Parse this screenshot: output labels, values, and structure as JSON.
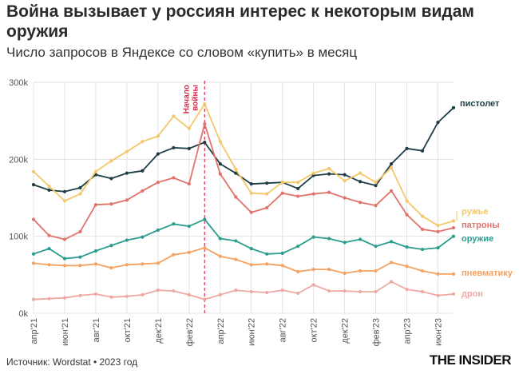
{
  "title": "Война вызывает у россиян интерес к некоторым видам оружия",
  "subtitle": "Число запросов в Яндексе со словом «купить» в месяц",
  "footer": {
    "source": "Источник: Wordstat • 2023 год",
    "logo": "THE INSIDER"
  },
  "colors": {
    "пистолет": "#1f3d47",
    "ружье": "#f3c86a",
    "патроны": "#e0736b",
    "оружие": "#2a9d8f",
    "пневматику": "#f4a261",
    "дрон": "#efa9a4",
    "annotation": "#d62e4e",
    "grid": "#e3e3e3"
  },
  "chart_data": {
    "type": "line",
    "title": "Война вызывает у россиян интерес к некоторым видам оружия",
    "subtitle": "Число запросов в Яндексе со словом «купить» в месяц",
    "x": [
      "апр'21",
      "май'21",
      "июн'21",
      "июл'21",
      "авг'21",
      "сен'21",
      "окт'21",
      "ноя'21",
      "дек'21",
      "янв'22",
      "фев'22",
      "мар'22",
      "апр'22",
      "май'22",
      "июн'22",
      "июл'22",
      "авг'22",
      "сен'22",
      "окт'22",
      "ноя'22",
      "дек'22",
      "янв'23",
      "фев'23",
      "мар'23",
      "апр'23",
      "май'23",
      "июн'23",
      "июл'23"
    ],
    "x_tick_labels": [
      "апр'21",
      "июн'21",
      "авг'21",
      "окт'21",
      "дек'21",
      "фев'22",
      "апр'22",
      "июн'22",
      "авг'22",
      "окт'22",
      "дек'22",
      "фев'23",
      "апр'23",
      "июн'23"
    ],
    "y_ticks": [
      "0k",
      "100k",
      "200k",
      "300k"
    ],
    "ylim": [
      0,
      300000
    ],
    "grid": true,
    "legend": "right, labels at line ends",
    "annotation": {
      "text": "Начало войны",
      "x": "мар'22"
    },
    "series": [
      {
        "name": "пистолет",
        "values": [
          167000,
          160000,
          158000,
          163000,
          180000,
          175000,
          182000,
          185000,
          207000,
          215000,
          214000,
          222000,
          194000,
          182000,
          168000,
          169000,
          170000,
          162000,
          179000,
          181000,
          180000,
          171000,
          166000,
          194000,
          214000,
          211000,
          248000,
          267000
        ]
      },
      {
        "name": "ружье",
        "values": [
          184000,
          165000,
          146000,
          155000,
          184000,
          198000,
          210000,
          223000,
          230000,
          256000,
          240000,
          272000,
          223000,
          187000,
          156000,
          155000,
          170000,
          170000,
          182000,
          188000,
          172000,
          182000,
          170000,
          189000,
          146000,
          126000,
          114000,
          120000
        ]
      },
      {
        "name": "патроны",
        "values": [
          122000,
          101000,
          96000,
          106000,
          141000,
          142000,
          147000,
          159000,
          170000,
          176000,
          168000,
          246000,
          181000,
          151000,
          131000,
          137000,
          156000,
          152000,
          155000,
          157000,
          150000,
          144000,
          140000,
          159000,
          128000,
          109000,
          106000,
          111000
        ]
      },
      {
        "name": "оружие",
        "values": [
          77000,
          84000,
          71000,
          73000,
          81000,
          88000,
          95000,
          99000,
          108000,
          116000,
          113000,
          122000,
          97000,
          94000,
          84000,
          77000,
          78000,
          87000,
          99000,
          97000,
          92000,
          96000,
          87000,
          93000,
          86000,
          83000,
          85000,
          100000
        ]
      },
      {
        "name": "пневматику",
        "values": [
          65000,
          63000,
          62000,
          62000,
          64000,
          59000,
          63000,
          64000,
          65000,
          76000,
          79000,
          85000,
          74000,
          70000,
          63000,
          64000,
          62000,
          54000,
          57000,
          57000,
          52000,
          55000,
          55000,
          66000,
          61000,
          55000,
          51000,
          51000
        ]
      },
      {
        "name": "дрон",
        "values": [
          18000,
          19000,
          20000,
          23000,
          25000,
          21000,
          22000,
          24000,
          30000,
          29000,
          24000,
          18000,
          24000,
          30000,
          28000,
          27000,
          30000,
          26000,
          37000,
          29000,
          29000,
          28000,
          28000,
          41000,
          31000,
          28000,
          23000,
          25000
        ]
      }
    ],
    "end_labels": [
      "пистолет",
      "ружье",
      "патроны",
      "оружие",
      "пневматику",
      "дрон"
    ]
  }
}
